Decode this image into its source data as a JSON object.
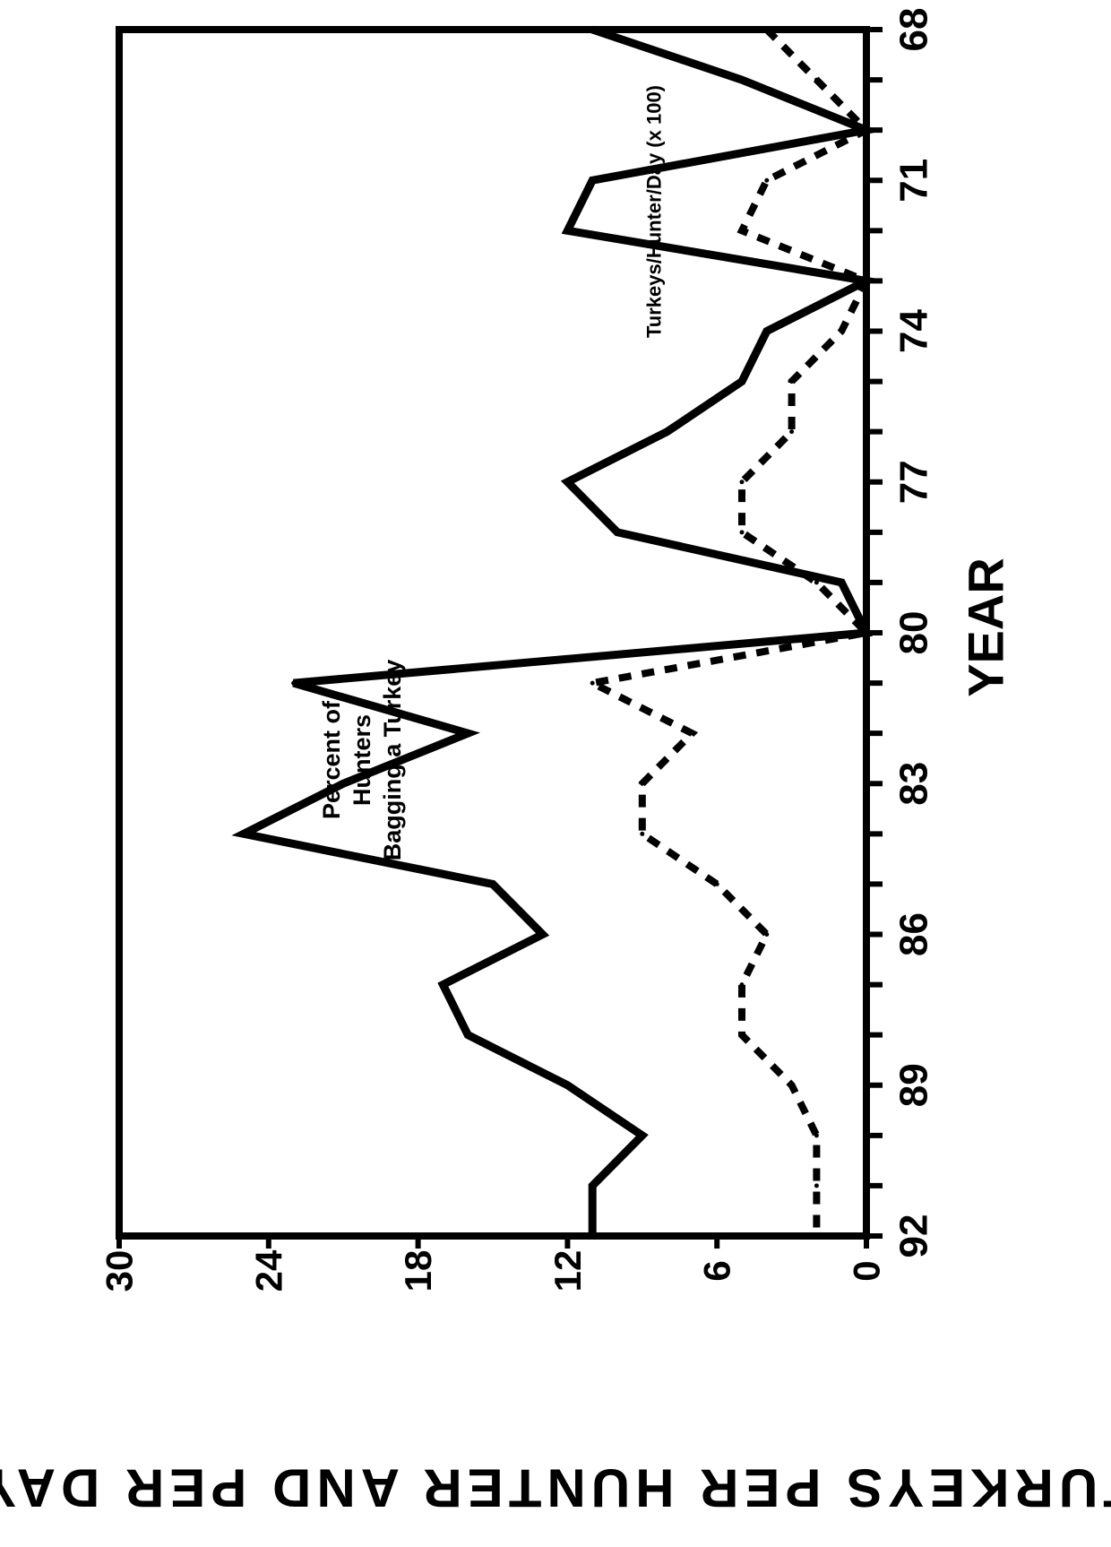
{
  "chart_data": {
    "type": "line",
    "orientation": "rotated-90-clockwise",
    "title": "",
    "xlabel": "YEAR",
    "ylabel": "TURKEYS PER HUNTER AND PER DAY",
    "xlim": [
      68,
      92
    ],
    "ylim": [
      0,
      30
    ],
    "x_ticks": [
      "68",
      "71",
      "74",
      "77",
      "80",
      "83",
      "86",
      "89",
      "92"
    ],
    "y_ticks": [
      "0",
      "6",
      "12",
      "18",
      "24",
      "30"
    ],
    "grid": false,
    "legend": "none",
    "series": [
      {
        "name": "Percent of Hunters Bagging a Turkey",
        "style": "solid",
        "x": [
          68,
          69,
          70,
          71,
          72,
          73,
          74,
          75,
          76,
          77,
          78,
          79,
          80,
          81,
          82,
          83,
          84,
          85,
          86,
          87,
          88,
          89,
          90,
          91,
          92
        ],
        "y": [
          11,
          5,
          0,
          11,
          12,
          0,
          4,
          5,
          8,
          12,
          10,
          1,
          0,
          23,
          16,
          21,
          25,
          15,
          13,
          17,
          16,
          12,
          9,
          11,
          11
        ]
      },
      {
        "name": "Turkeys/Hunter/Day (x 100)",
        "style": "dashed",
        "x": [
          68,
          69,
          70,
          71,
          72,
          73,
          74,
          75,
          76,
          77,
          78,
          79,
          80,
          81,
          82,
          83,
          84,
          85,
          86,
          87,
          88,
          89,
          90,
          91,
          92
        ],
        "y": [
          4,
          2,
          0,
          4,
          5,
          0,
          1,
          3,
          3,
          5,
          5,
          2,
          0,
          11,
          7,
          9,
          9,
          6,
          4,
          5,
          5,
          3,
          2,
          2,
          2
        ]
      }
    ],
    "annotations": [
      {
        "id": "percent",
        "lines": [
          "Percent of",
          "Hunters",
          "Bagging a Turkey"
        ]
      },
      {
        "id": "turkeys",
        "lines": [
          "Turkeys/Hunter/Day  (x  100)"
        ]
      }
    ],
    "colors": {
      "line": "#000000",
      "background": "#ffffff"
    }
  }
}
